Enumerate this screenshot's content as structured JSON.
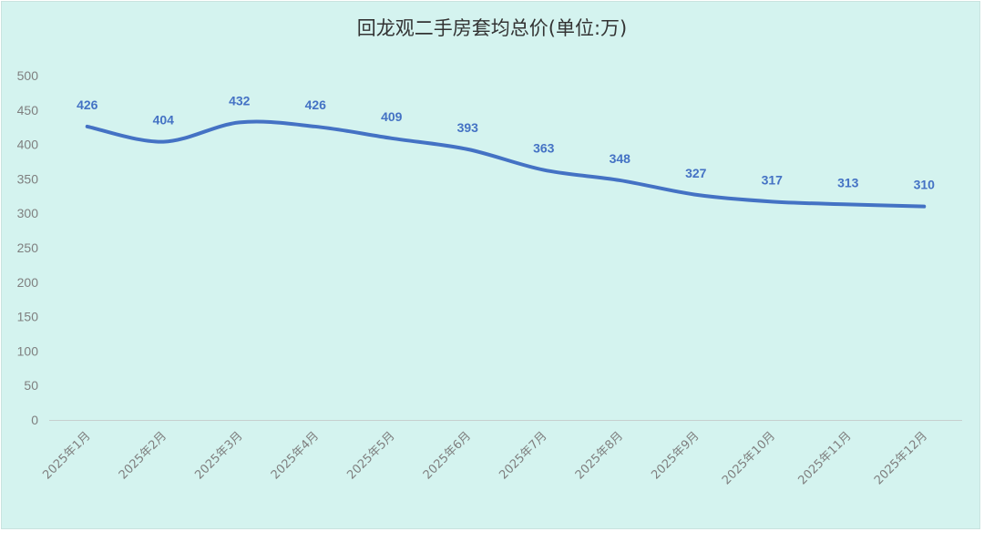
{
  "chart_data": {
    "type": "line",
    "title": "回龙观二手房套均总价(单位:万)",
    "xlabel": "",
    "ylabel": "",
    "categories": [
      "2025年1月",
      "2025年2月",
      "2025年3月",
      "2025年4月",
      "2025年5月",
      "2025年6月",
      "2025年7月",
      "2025年8月",
      "2025年9月",
      "2025年10月",
      "2025年11月",
      "2025年12月"
    ],
    "series": [
      {
        "values": [
          426,
          404,
          432,
          426,
          409,
          393,
          363,
          348,
          327,
          317,
          313,
          310
        ],
        "color": "#4472c4",
        "smooth": true,
        "data_labels": true,
        "drop_lines": true
      }
    ],
    "ylim": [
      0,
      500
    ],
    "yticks": [
      0,
      50,
      100,
      150,
      200,
      250,
      300,
      350,
      400,
      450,
      500
    ],
    "grid": false,
    "legend": "none",
    "background": "#d4f3ef"
  }
}
